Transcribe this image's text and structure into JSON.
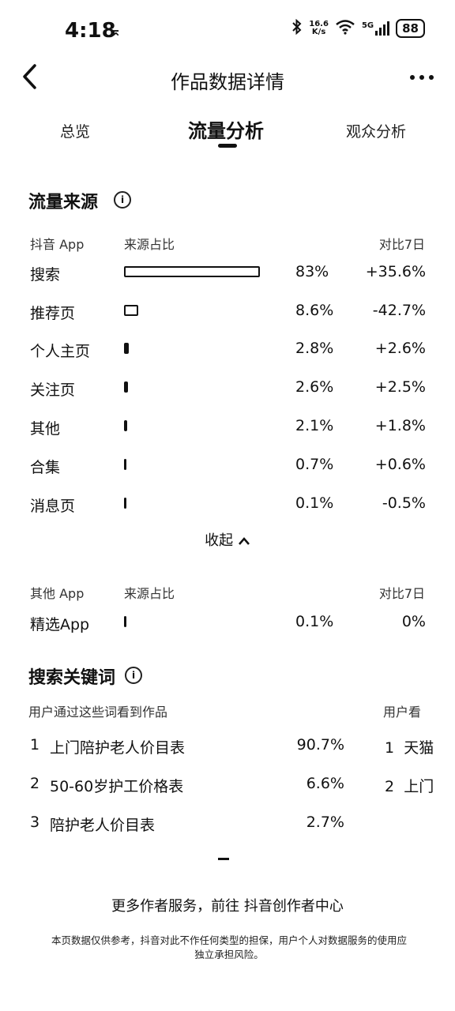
{
  "status_bar": {
    "time": "4:18",
    "time_extra": "⌅",
    "speed_top": "16.6",
    "speed_bottom": "K/s",
    "network": "5G",
    "battery": "88"
  },
  "nav": {
    "title": "作品数据详情",
    "back_glyph": "‹",
    "more_glyph": "•••"
  },
  "tabs": [
    {
      "label": "总览"
    },
    {
      "label": "流量分析"
    },
    {
      "label": "观众分析"
    }
  ],
  "traffic_source": {
    "title": "流量来源",
    "info_glyph": "i",
    "header": {
      "app": "抖音 App",
      "ratio": "来源占比",
      "compare": "对比7日"
    },
    "rows": [
      {
        "name": "搜索",
        "pct": "83%",
        "diff": "+35.6%",
        "ratio": 0.83
      },
      {
        "name": "推荐页",
        "pct": "8.6%",
        "diff": "-42.7%",
        "ratio": 0.086
      },
      {
        "name": "个人主页",
        "pct": "2.8%",
        "diff": "+2.6%",
        "ratio": 0.028
      },
      {
        "name": "关注页",
        "pct": "2.6%",
        "diff": "+2.5%",
        "ratio": 0.026
      },
      {
        "name": "其他",
        "pct": "2.1%",
        "diff": "+1.8%",
        "ratio": 0.021
      },
      {
        "name": "合集",
        "pct": "0.7%",
        "diff": "+0.6%",
        "ratio": 0.007
      },
      {
        "name": "消息页",
        "pct": "0.1%",
        "diff": "-0.5%",
        "ratio": 0.001
      }
    ],
    "collapse_label": "收起",
    "collapse_glyph": "⌃",
    "other_header": {
      "app": "其他 App",
      "ratio": "来源占比",
      "compare": "对比7日"
    },
    "other_rows": [
      {
        "name": "精选App",
        "pct": "0.1%",
        "diff": "0%",
        "ratio": 0.001
      }
    ]
  },
  "search_keywords": {
    "title": "搜索关键词",
    "info_glyph": "i",
    "left_caption": "用户通过这些词看到作品",
    "right_caption": "用户看",
    "rows": [
      {
        "rank": "1",
        "keyword": "上门陪护老人价目表",
        "pct": "90.7%"
      },
      {
        "rank": "2",
        "keyword": "50-60岁护工价格表",
        "pct": "6.6%"
      },
      {
        "rank": "3",
        "keyword": "陪护老人价目表",
        "pct": "2.7%"
      }
    ],
    "right_rows": [
      {
        "rank": "1",
        "keyword": "天猫"
      },
      {
        "rank": "2",
        "keyword": "上门"
      }
    ]
  },
  "footer": {
    "more_services": "更多作者服务，前往 抖音创作者中心",
    "disclaimer_line1": "本页数据仅供参考，抖音对此不作任何类型的担保，用户个人对数据服务的使用应",
    "disclaimer_line2": "独立承担风险。"
  }
}
